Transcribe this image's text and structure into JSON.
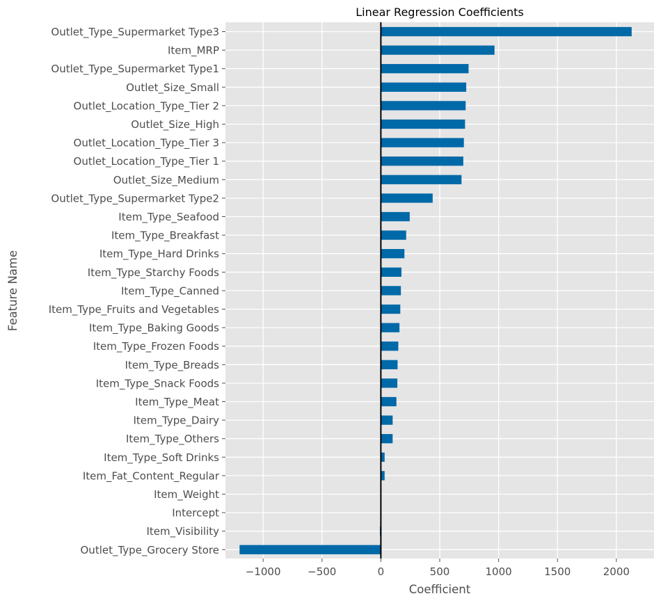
{
  "chart_data": {
    "type": "bar",
    "orientation": "horizontal",
    "title": "Linear Regression Coefficients",
    "xlabel": "Coefficient",
    "ylabel": "Feature Name",
    "xlim": [
      -1320,
      2320
    ],
    "xticks": [
      -1000,
      -500,
      0,
      500,
      1000,
      1500,
      2000
    ],
    "xtick_labels": [
      "−1000",
      "−500",
      "0",
      "500",
      "1000",
      "1500",
      "2000"
    ],
    "grid": true,
    "zero_line": true,
    "colors": {
      "bar": "#0069a8",
      "plot_bg": "#e5e5e5",
      "grid": "#ffffff",
      "zero_line": "#000000"
    },
    "categories": [
      "Outlet_Type_Supermarket Type3",
      "Item_MRP",
      "Outlet_Type_Supermarket Type1",
      "Outlet_Size_Small",
      "Outlet_Location_Type_Tier 2",
      "Outlet_Size_High",
      "Outlet_Location_Type_Tier 3",
      "Outlet_Location_Type_Tier 1",
      "Outlet_Size_Medium",
      "Outlet_Type_Supermarket Type2",
      "Item_Type_Seafood",
      "Item_Type_Breakfast",
      "Item_Type_Hard Drinks",
      "Item_Type_Starchy Foods",
      "Item_Type_Canned",
      "Item_Type_Fruits and Vegetables",
      "Item_Type_Baking Goods",
      "Item_Type_Frozen Foods",
      "Item_Type_Breads",
      "Item_Type_Snack Foods",
      "Item_Type_Meat",
      "Item_Type_Dairy",
      "Item_Type_Others",
      "Item_Type_Soft Drinks",
      "Item_Fat_Content_Regular",
      "Item_Weight",
      "Intercept",
      "Item_Visibility",
      "Outlet_Type_Grocery Store"
    ],
    "values": [
      2130,
      965,
      745,
      725,
      720,
      715,
      705,
      700,
      685,
      440,
      245,
      215,
      200,
      175,
      170,
      165,
      158,
      148,
      142,
      140,
      132,
      100,
      100,
      32,
      32,
      0,
      0,
      -8,
      -1200
    ]
  }
}
